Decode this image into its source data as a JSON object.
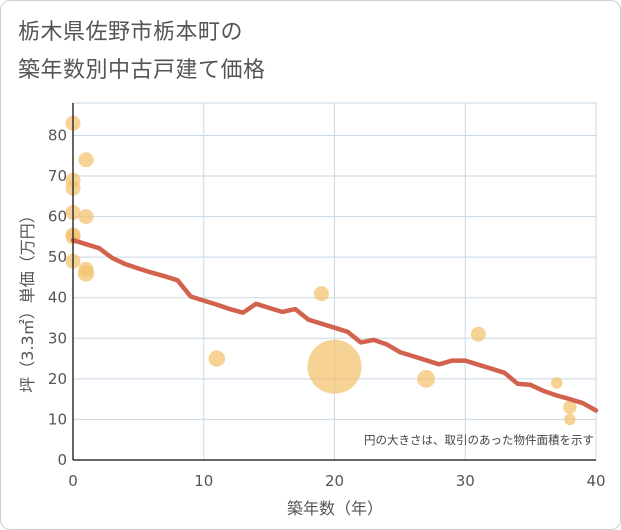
{
  "title_line1": "栃木県佐野市栃本町の",
  "title_line2": "築年数別中古戸建て価格",
  "chart_data": {
    "type": "scatter",
    "title": "栃木県佐野市栃本町の築年数別中古戸建て価格",
    "xlabel": "築年数（年）",
    "ylabel": "坪（3.3㎡）単価（万円）",
    "xlim": [
      0,
      40
    ],
    "ylim": [
      0,
      88
    ],
    "x_ticks": [
      0,
      10,
      20,
      30,
      40
    ],
    "y_ticks": [
      0,
      10,
      20,
      30,
      40,
      50,
      60,
      70,
      80
    ],
    "grid": true,
    "annotation": "円の大きさは、取引のあった物件面積を示す",
    "colors": {
      "bubble": "#f3c06c",
      "line": "#d2614d",
      "grid": "#c8d8e6",
      "axis": "#333333",
      "text": "#555555"
    },
    "points": [
      {
        "x": 0,
        "y": 83,
        "size": 1
      },
      {
        "x": 0,
        "y": 69,
        "size": 1
      },
      {
        "x": 0,
        "y": 67,
        "size": 1
      },
      {
        "x": 0,
        "y": 61,
        "size": 1
      },
      {
        "x": 0,
        "y": 55.5,
        "size": 1
      },
      {
        "x": 0,
        "y": 55,
        "size": 1
      },
      {
        "x": 0,
        "y": 49,
        "size": 1
      },
      {
        "x": 1,
        "y": 74,
        "size": 1
      },
      {
        "x": 1,
        "y": 60,
        "size": 1
      },
      {
        "x": 1,
        "y": 47,
        "size": 1
      },
      {
        "x": 1,
        "y": 46,
        "size": 1.2
      },
      {
        "x": 11,
        "y": 25,
        "size": 1.2
      },
      {
        "x": 19,
        "y": 41,
        "size": 1
      },
      {
        "x": 20,
        "y": 23,
        "size": 13
      },
      {
        "x": 27,
        "y": 20,
        "size": 1.4
      },
      {
        "x": 31,
        "y": 31,
        "size": 1
      },
      {
        "x": 37,
        "y": 19,
        "size": 0.6
      },
      {
        "x": 38,
        "y": 13,
        "size": 0.8
      },
      {
        "x": 38,
        "y": 10,
        "size": 0.6
      }
    ],
    "trend": {
      "x": [
        0,
        1,
        2,
        3,
        4,
        5,
        6,
        7,
        8,
        9,
        10,
        11,
        12,
        13,
        14,
        15,
        16,
        17,
        18,
        19,
        20,
        21,
        22,
        23,
        24,
        25,
        26,
        27,
        28,
        29,
        30,
        31,
        32,
        33,
        34,
        35,
        36,
        37,
        38,
        39,
        40
      ],
      "y": [
        54.2,
        53.2,
        52.2,
        49.8,
        48.3,
        47.2,
        46.2,
        45.3,
        44.3,
        40.3,
        39.3,
        38.3,
        37.2,
        36.3,
        38.5,
        37.5,
        36.5,
        37.2,
        34.6,
        33.6,
        32.6,
        31.6,
        29.0,
        29.6,
        28.5,
        26.6,
        25.6,
        24.6,
        23.6,
        24.5,
        24.5,
        23.5,
        22.5,
        21.5,
        18.8,
        18.5,
        17.0,
        15.9,
        15.0,
        14.0,
        12.2
      ]
    }
  }
}
